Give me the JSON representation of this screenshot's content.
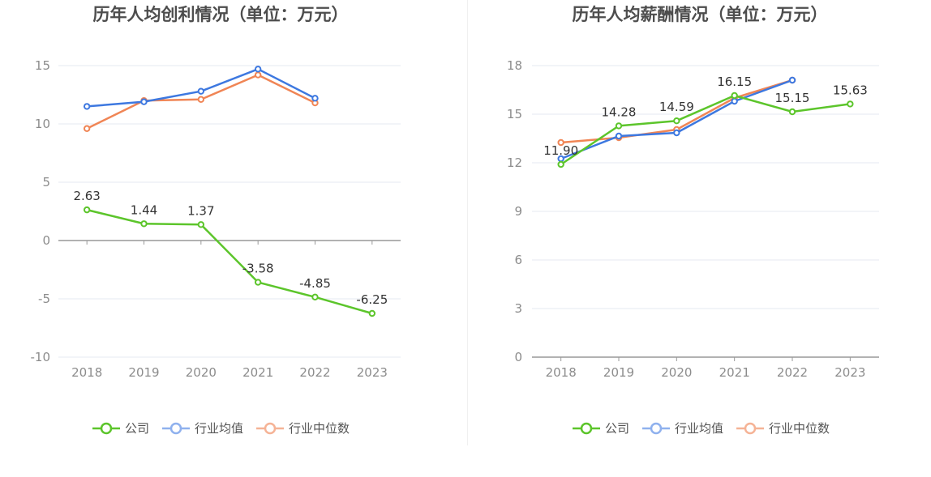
{
  "chart_data": [
    {
      "type": "line",
      "title": "历年人均创利情况（单位：万元）",
      "categories": [
        "2018",
        "2019",
        "2020",
        "2021",
        "2022",
        "2023"
      ],
      "ylim": [
        -10,
        15
      ],
      "yticks": [
        15,
        10,
        5,
        0,
        -5,
        -10
      ],
      "yticklabels": [
        "15",
        "10",
        "5",
        "0",
        "-5",
        "-10"
      ],
      "grid": true,
      "legend_position": "bottom",
      "series": [
        {
          "name": "公司",
          "color": "#5cc52b",
          "values": [
            2.63,
            1.44,
            1.37,
            -3.58,
            -4.85,
            -6.25
          ],
          "labels": [
            "2.63",
            "1.44",
            "1.37",
            "-3.58",
            "-4.85",
            "-6.25"
          ]
        },
        {
          "name": "行业均值",
          "color": "#3d78e0",
          "values": [
            11.5,
            11.9,
            12.8,
            14.7,
            12.2,
            null
          ],
          "labels": null
        },
        {
          "name": "行业中位数",
          "color": "#f08555",
          "values": [
            9.6,
            12.0,
            12.1,
            14.2,
            11.8,
            null
          ],
          "labels": null
        }
      ]
    },
    {
      "type": "line",
      "title": "历年人均薪酬情况（单位：万元）",
      "categories": [
        "2018",
        "2019",
        "2020",
        "2021",
        "2022",
        "2023"
      ],
      "ylim": [
        0,
        18
      ],
      "yticks": [
        18,
        15,
        12,
        9,
        6,
        3,
        0
      ],
      "yticklabels": [
        "18",
        "15",
        "12",
        "9",
        "6",
        "3",
        "0"
      ],
      "grid": true,
      "legend_position": "bottom",
      "series": [
        {
          "name": "公司",
          "color": "#5cc52b",
          "values": [
            11.9,
            14.28,
            14.59,
            16.15,
            15.15,
            15.63
          ],
          "labels": [
            "11.90",
            "14.28",
            "14.59",
            "16.15",
            "15.15",
            "15.63"
          ]
        },
        {
          "name": "行业均值",
          "color": "#3d78e0",
          "values": [
            12.25,
            13.65,
            13.85,
            15.8,
            17.1,
            null
          ],
          "labels": null
        },
        {
          "name": "行业中位数",
          "color": "#f08555",
          "values": [
            13.25,
            13.55,
            14.05,
            16.0,
            17.1,
            null
          ],
          "labels": null
        }
      ]
    }
  ]
}
